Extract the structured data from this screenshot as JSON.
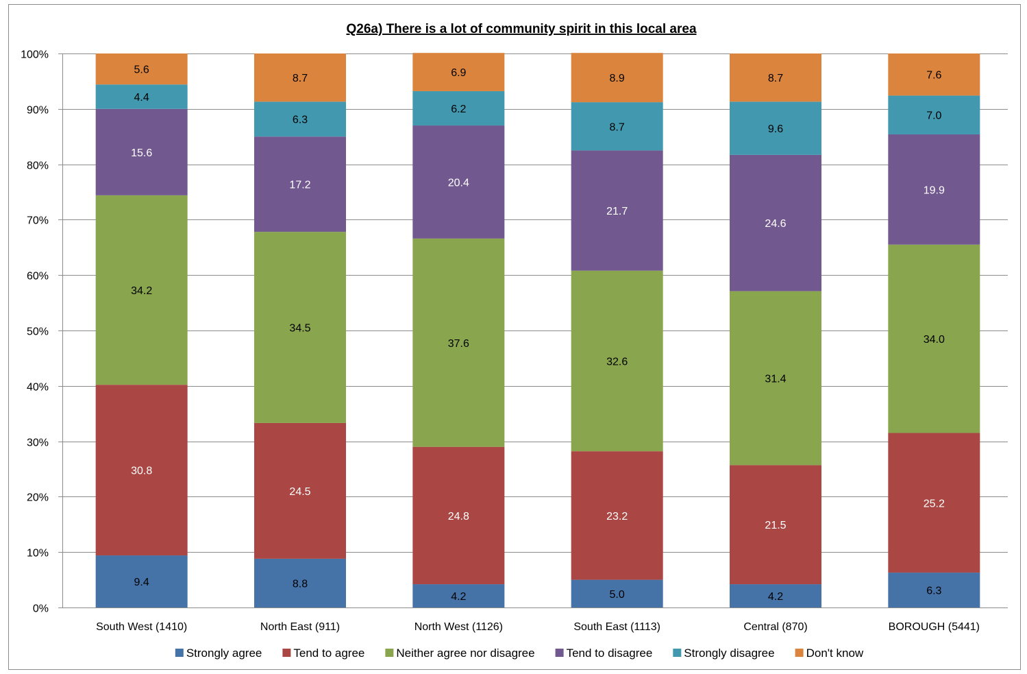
{
  "chart_data": {
    "type": "bar",
    "stacked": true,
    "title": "Q26a) There is a lot of community spirit in this local area",
    "categories": [
      "South West (1410)",
      "North East (911)",
      "North West (1126)",
      "South East (1113)",
      "Central (870)",
      "BOROUGH (5441)"
    ],
    "series": [
      {
        "name": "Strongly agree",
        "color": "#4572a7",
        "label_color": "#000000",
        "values": [
          9.4,
          8.8,
          4.2,
          5.0,
          4.2,
          6.3
        ]
      },
      {
        "name": "Tend to agree",
        "color": "#aa4643",
        "label_color": "#ffffff",
        "values": [
          30.8,
          24.5,
          24.8,
          23.2,
          21.5,
          25.2
        ]
      },
      {
        "name": "Neither agree nor disagree",
        "color": "#89a54e",
        "label_color": "#000000",
        "values": [
          34.2,
          34.5,
          37.6,
          32.6,
          31.4,
          34.0
        ]
      },
      {
        "name": "Tend to disagree",
        "color": "#71588f",
        "label_color": "#ffffff",
        "values": [
          15.6,
          17.2,
          20.4,
          21.7,
          24.6,
          19.9
        ]
      },
      {
        "name": "Strongly disagree",
        "color": "#4198af",
        "label_color": "#000000",
        "values": [
          4.4,
          6.3,
          6.2,
          8.7,
          9.6,
          7.0
        ]
      },
      {
        "name": "Don't know",
        "color": "#db843d",
        "label_color": "#000000",
        "values": [
          5.6,
          8.7,
          6.9,
          8.9,
          8.7,
          7.6
        ]
      }
    ],
    "ylim": [
      0,
      100
    ],
    "ytick_step": 10,
    "y_tick_format": "percent",
    "grid": true,
    "legend_position": "bottom"
  }
}
